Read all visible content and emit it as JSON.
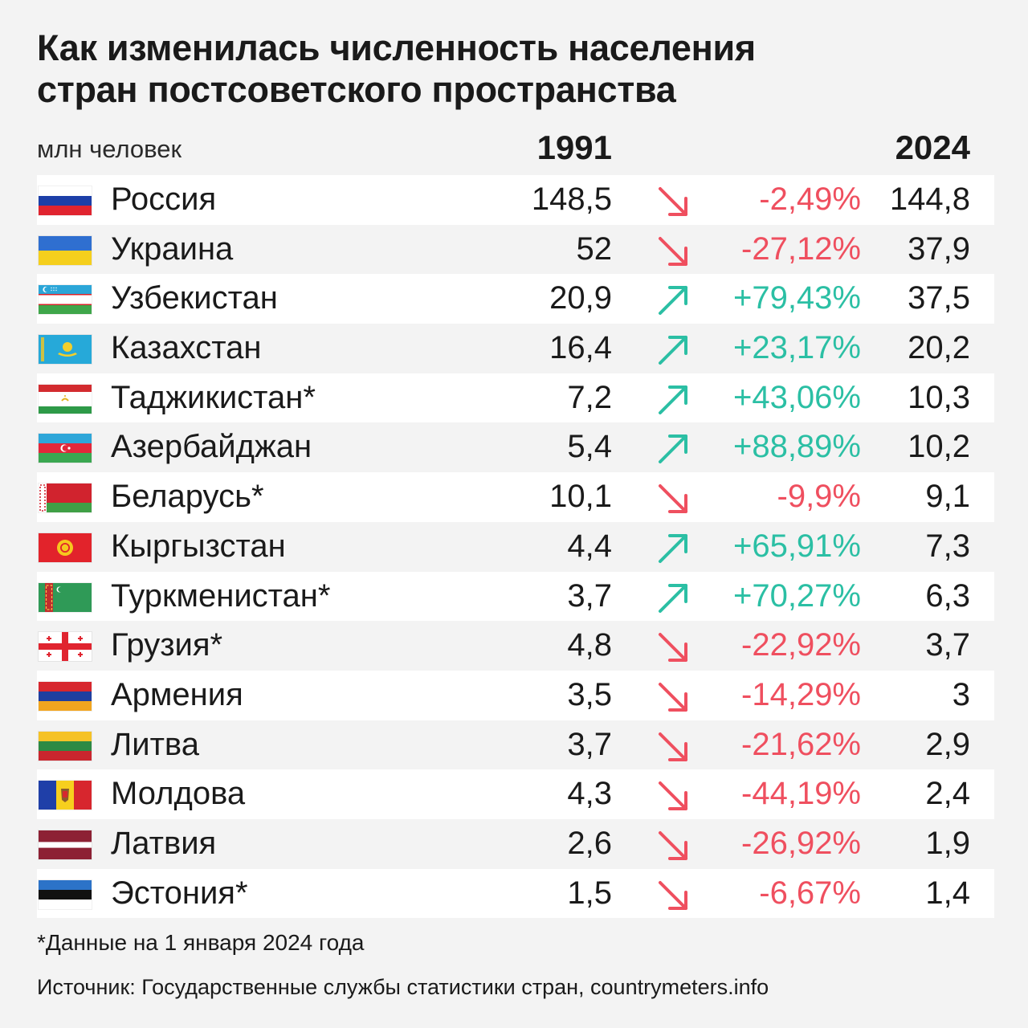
{
  "title_line1": "Как изменилась численность населения",
  "title_line2": "стран постсоветского пространства",
  "unit_label": "млн человек",
  "year_start": "1991",
  "year_end": "2024",
  "colors": {
    "up": "#2bbfa4",
    "down": "#ef4f5f"
  },
  "chart_data": {
    "type": "table",
    "columns": [
      "1991",
      "2024"
    ],
    "rows": [
      {
        "country": "Россия",
        "flag": "russia-flag-icon",
        "v1991": "148,5",
        "change": "-2,49%",
        "dir": "down",
        "v2024": "144,8"
      },
      {
        "country": "Украина",
        "flag": "ukraine-flag-icon",
        "v1991": "52",
        "change": "-27,12%",
        "dir": "down",
        "v2024": "37,9"
      },
      {
        "country": "Узбекистан",
        "flag": "uzbekistan-flag-icon",
        "v1991": "20,9",
        "change": "+79,43%",
        "dir": "up",
        "v2024": "37,5"
      },
      {
        "country": "Казахстан",
        "flag": "kazakhstan-flag-icon",
        "v1991": "16,4",
        "change": "+23,17%",
        "dir": "up",
        "v2024": "20,2"
      },
      {
        "country": "Таджикистан*",
        "flag": "tajikistan-flag-icon",
        "v1991": "7,2",
        "change": "+43,06%",
        "dir": "up",
        "v2024": "10,3"
      },
      {
        "country": "Азербайджан",
        "flag": "azerbaijan-flag-icon",
        "v1991": "5,4",
        "change": "+88,89%",
        "dir": "up",
        "v2024": "10,2"
      },
      {
        "country": "Беларусь*",
        "flag": "belarus-flag-icon",
        "v1991": "10,1",
        "change": "-9,9%",
        "dir": "down",
        "v2024": "9,1"
      },
      {
        "country": "Кыргызстан",
        "flag": "kyrgyzstan-flag-icon",
        "v1991": "4,4",
        "change": "+65,91%",
        "dir": "up",
        "v2024": "7,3"
      },
      {
        "country": "Туркменистан*",
        "flag": "turkmenistan-flag-icon",
        "v1991": "3,7",
        "change": "+70,27%",
        "dir": "up",
        "v2024": "6,3"
      },
      {
        "country": "Грузия*",
        "flag": "georgia-flag-icon",
        "v1991": "4,8",
        "change": "-22,92%",
        "dir": "down",
        "v2024": "3,7"
      },
      {
        "country": "Армения",
        "flag": "armenia-flag-icon",
        "v1991": "3,5",
        "change": "-14,29%",
        "dir": "down",
        "v2024": "3"
      },
      {
        "country": "Литва",
        "flag": "lithuania-flag-icon",
        "v1991": "3,7",
        "change": "-21,62%",
        "dir": "down",
        "v2024": "2,9"
      },
      {
        "country": "Молдова",
        "flag": "moldova-flag-icon",
        "v1991": "4,3",
        "change": "-44,19%",
        "dir": "down",
        "v2024": "2,4"
      },
      {
        "country": "Латвия",
        "flag": "latvia-flag-icon",
        "v1991": "2,6",
        "change": "-26,92%",
        "dir": "down",
        "v2024": "1,9"
      },
      {
        "country": "Эстония*",
        "flag": "estonia-flag-icon",
        "v1991": "1,5",
        "change": "-6,67%",
        "dir": "down",
        "v2024": "1,4"
      }
    ]
  },
  "footnote": "*Данные на 1 января 2024 года",
  "source": "Источник: Государственные службы статистики стран, countrymeters.info"
}
